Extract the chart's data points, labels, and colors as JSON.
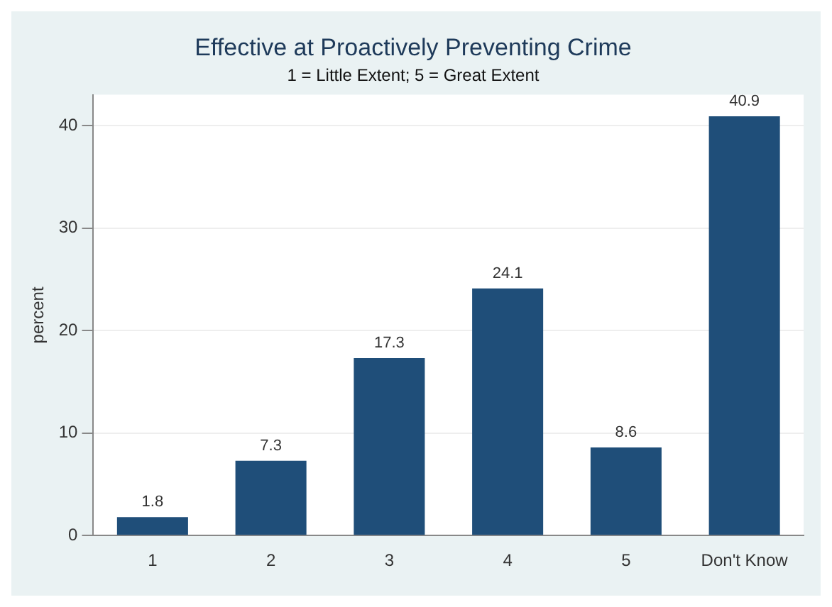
{
  "chart_data": {
    "type": "bar",
    "title": "Effective at Proactively Preventing Crime",
    "subtitle": "1 = Little Extent; 5 = Great Extent",
    "ylabel": "percent",
    "categories": [
      "1",
      "2",
      "3",
      "4",
      "5",
      "Don't Know"
    ],
    "values": [
      1.8,
      7.3,
      17.3,
      24.1,
      8.6,
      40.9
    ],
    "color": "#1f4e79",
    "ylim": [
      0,
      43
    ],
    "yticks": [
      0,
      10,
      20,
      30,
      40
    ],
    "grid": "y",
    "data_labels": true,
    "legend": false
  }
}
